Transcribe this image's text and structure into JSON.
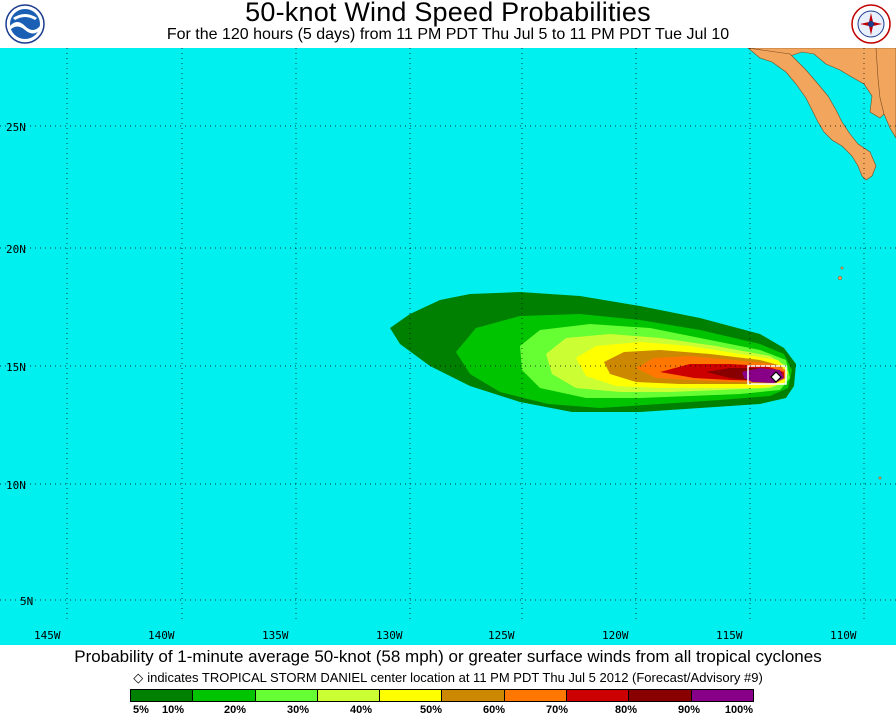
{
  "header": {
    "title": "50-knot Wind Speed Probabilities",
    "subtitle": "For the 120 hours (5 days) from 11 PM PDT Thu Jul 5 to 11 PM PDT Tue Jul 10",
    "left_logo": "noaa-logo",
    "right_logo": "national-weather-service-logo"
  },
  "map": {
    "water_color": "#00f0f0",
    "land_color": "#f2a55c",
    "lat_labels": [
      "25N",
      "20N",
      "15N",
      "10N",
      "5N"
    ],
    "lon_labels": [
      "145W",
      "140W",
      "135W",
      "130W",
      "125W",
      "120W",
      "115W",
      "110W"
    ],
    "storm_marker": "diamond-icon"
  },
  "footer": {
    "caption": "Probability of 1-minute average 50-knot (58 mph) or greater surface winds from all tropical cyclones",
    "note": "indicates TROPICAL STORM DANIEL center location at 11 PM PDT Thu Jul 5 2012 (Forecast/Advisory #9)"
  },
  "legend": {
    "colors": [
      "#008000",
      "#00c400",
      "#66ff33",
      "#ccff33",
      "#ffff00",
      "#cc8800",
      "#ff7700",
      "#cc0000",
      "#880000",
      "#880088"
    ],
    "labels": [
      "5%",
      "10%",
      "20%",
      "30%",
      "40%",
      "50%",
      "60%",
      "70%",
      "80%",
      "90%",
      "100%"
    ]
  }
}
